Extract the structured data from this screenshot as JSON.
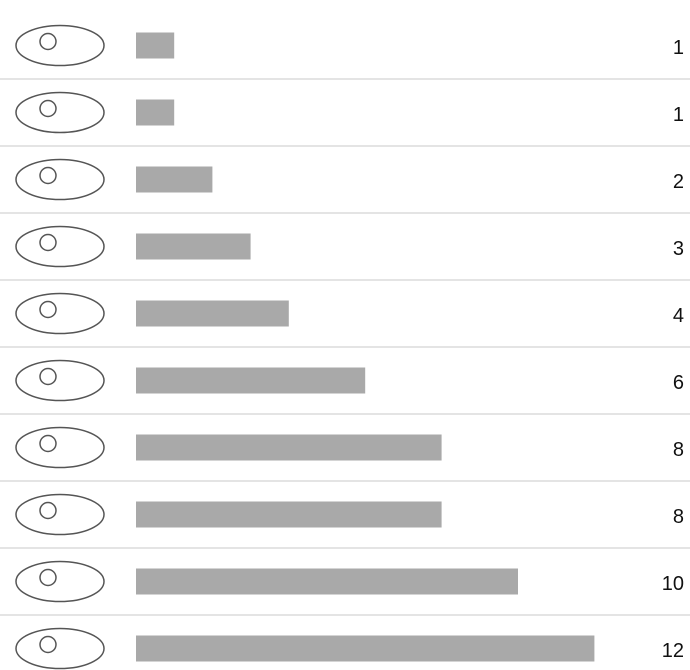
{
  "chart_data": {
    "type": "bar",
    "orientation": "horizontal",
    "categories": [
      null,
      null,
      null,
      null,
      null,
      null,
      null,
      null,
      null,
      null
    ],
    "values": [
      1,
      1,
      2,
      3,
      4,
      6,
      8,
      8,
      10,
      12
    ],
    "color": "#a9a9a9"
  }
}
